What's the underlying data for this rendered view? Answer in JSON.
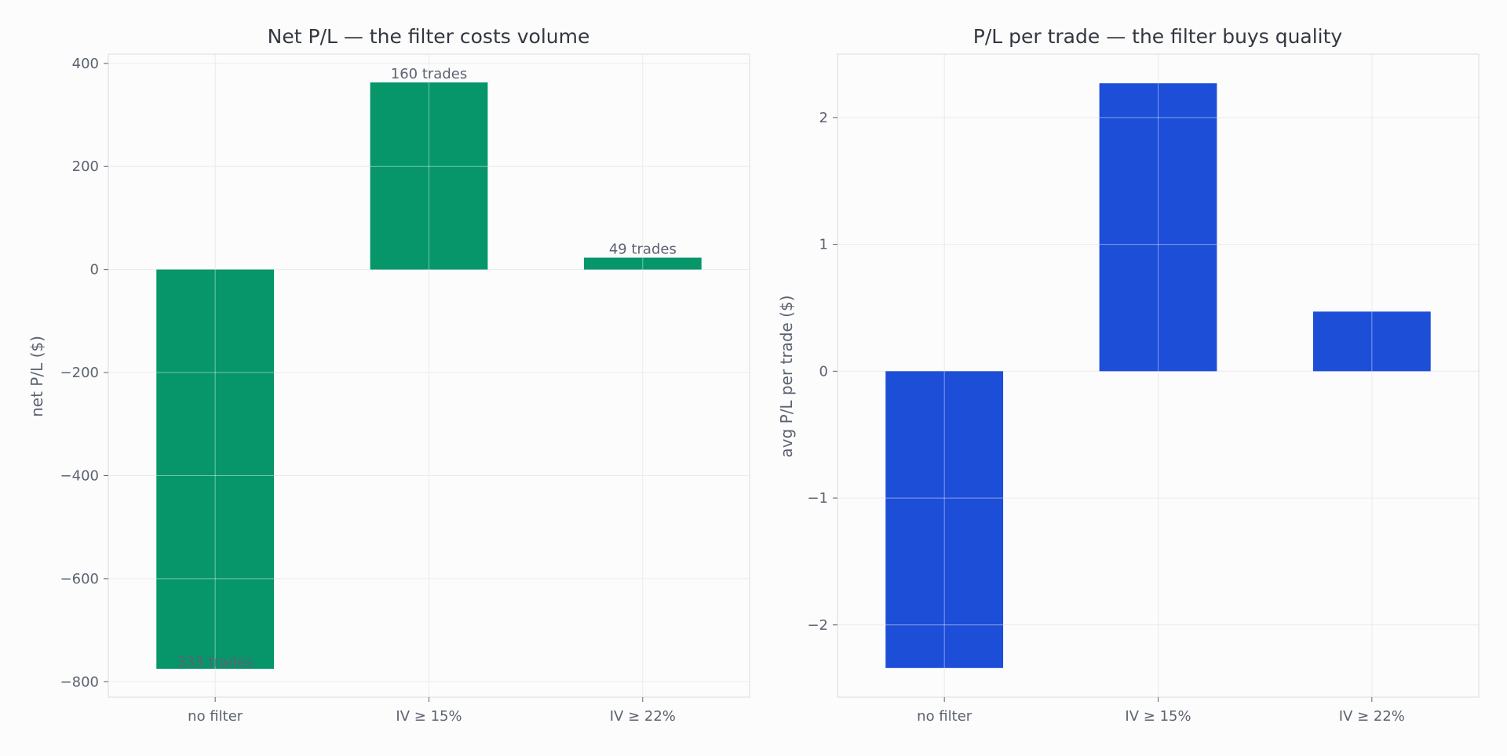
{
  "colors": {
    "background": "#fcfcfc",
    "plot_bg": "#fcfcfc",
    "grid": "#ebebeb",
    "bar_grid": "#d9efe6",
    "spine": "#dddddd",
    "tick_text": "#5c6270",
    "title_text": "#333740",
    "annotation_text": "#5c6270"
  },
  "chart_data": [
    {
      "type": "bar",
      "title": "Net P/L — the filter costs volume",
      "xlabel": "",
      "ylabel": "net P/L ($)",
      "categories": [
        "no filter",
        "IV ≥ 15%",
        "IV ≥ 22%"
      ],
      "values": [
        -775,
        363,
        23
      ],
      "ylim": [
        -830,
        418
      ],
      "yticks": [
        400,
        200,
        0,
        -200,
        -400,
        -600,
        -800
      ],
      "ytick_labels": [
        "400",
        "200",
        "0",
        "−200",
        "−400",
        "−600",
        "−800"
      ],
      "bar_color": "#07966a",
      "annotations": [
        "333 trades",
        "160 trades",
        "49 trades"
      ],
      "grid": true,
      "legend": "none"
    },
    {
      "type": "bar",
      "title": "P/L per trade — the filter buys quality",
      "xlabel": "",
      "ylabel": "avg P/L per trade ($)",
      "categories": [
        "no filter",
        "IV ≥ 15%",
        "IV ≥ 22%"
      ],
      "values": [
        -2.34,
        2.27,
        0.47
      ],
      "ylim": [
        -2.57,
        2.5
      ],
      "yticks": [
        2,
        1,
        0,
        -1,
        -2
      ],
      "ytick_labels": [
        "2",
        "1",
        "0",
        "−1",
        "−2"
      ],
      "bar_color": "#1d4ed8",
      "annotations": [],
      "grid": true,
      "legend": "none"
    }
  ]
}
